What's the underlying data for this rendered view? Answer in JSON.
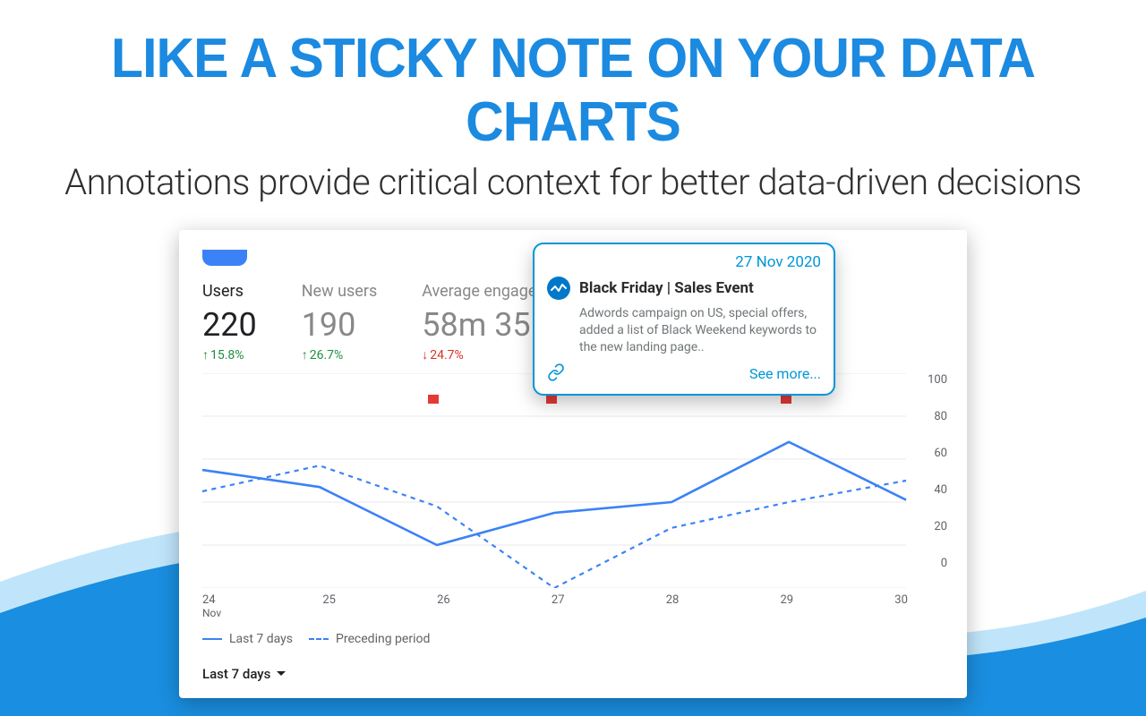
{
  "headline": {
    "main": "LIKE A STICKY NOTE ON YOUR DATA CHARTS",
    "sub": "Annotations provide critical context for better data-driven decisions"
  },
  "colors": {
    "brand_blue": "#1b8ae0",
    "chart_line": "#3b82f6",
    "tooltip_border": "#0095d9",
    "red_marker": "#e53935",
    "up_green": "#1e8e3e",
    "down_red": "#d93025",
    "text_dark": "#202124",
    "text_muted": "#5f6368",
    "text_dim": "#888888",
    "background": "#ffffff",
    "wave_solid": "#1a8ee0",
    "wave_light": "#c0e5fa"
  },
  "metrics": [
    {
      "label": "Users",
      "value": "220",
      "change": "15.8%",
      "direction": "up",
      "dim": false
    },
    {
      "label": "New users",
      "value": "190",
      "change": "26.7%",
      "direction": "up",
      "dim": true
    },
    {
      "label": "Average engage",
      "value": "58m 35",
      "change": "24.7%",
      "direction": "down",
      "dim": true
    }
  ],
  "chart": {
    "type": "line",
    "ylim": [
      0,
      100
    ],
    "ytick_step": 20,
    "y_ticks": [
      "100",
      "80",
      "60",
      "40",
      "20",
      "0"
    ],
    "x_labels": [
      {
        "day": "24",
        "month": "Nov"
      },
      {
        "day": "25",
        "month": ""
      },
      {
        "day": "26",
        "month": ""
      },
      {
        "day": "27",
        "month": ""
      },
      {
        "day": "28",
        "month": ""
      },
      {
        "day": "29",
        "month": ""
      },
      {
        "day": "30",
        "month": ""
      }
    ],
    "series_current": {
      "name": "Last 7 days",
      "color": "#3b82f6",
      "width": 2.4,
      "dash": "none",
      "values": [
        55,
        47,
        20,
        35,
        40,
        68,
        41
      ]
    },
    "series_preceding": {
      "name": "Preceding period",
      "color": "#3b82f6",
      "width": 2,
      "dash": "5,5",
      "values": [
        45,
        57,
        38,
        0,
        28,
        40,
        50
      ]
    },
    "red_markers_x": [
      2,
      3,
      5
    ],
    "grid_color": "#e8eaed"
  },
  "annotation": {
    "date": "27 Nov 2020",
    "title": "Black Friday | Sales Event",
    "body": "Adwords campaign on US, special offers, added a list of Black Weekend keywords to the new landing page..",
    "see_more": "See more..."
  },
  "legend": {
    "current": "Last 7 days",
    "preceding": "Preceding period"
  },
  "range_selector": "Last 7 days"
}
